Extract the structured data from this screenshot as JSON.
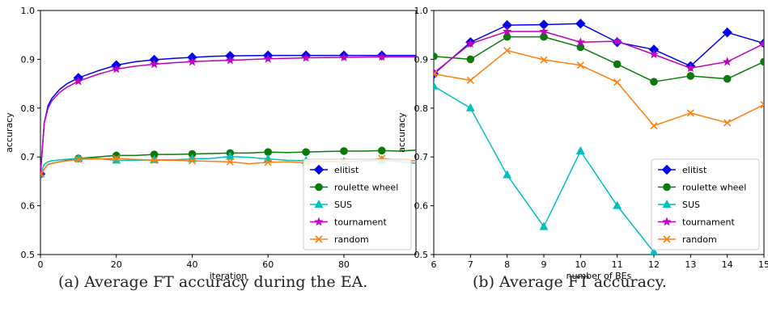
{
  "captions": {
    "a": "(a) Average FT accuracy during the EA.",
    "b": "(b) Average FT accuracy."
  },
  "colors": {
    "elitist": "#0000ee",
    "roulette wheel": "#0a7a0a",
    "SUS": "#00bfbf",
    "tournament": "#bf00bf",
    "random": "#ff7f0e"
  },
  "markers": {
    "elitist": "diamond",
    "roulette wheel": "circle",
    "SUS": "triangle",
    "tournament": "star",
    "random": "x"
  },
  "chart_data": [
    {
      "type": "line",
      "title": "",
      "xlabel": "iteration",
      "ylabel": "accuracy",
      "xlim": [
        0,
        99
      ],
      "ylim": [
        0.5,
        1.0
      ],
      "xticks": [
        0,
        20,
        40,
        60,
        80
      ],
      "yticks": [
        0.5,
        0.6,
        0.7,
        0.8,
        0.9,
        1.0
      ],
      "legend_position": "lower-right",
      "grid": false,
      "series": [
        {
          "name": "elitist",
          "x": [
            0,
            1,
            2,
            3,
            5,
            7,
            10,
            15,
            20,
            25,
            30,
            35,
            40,
            45,
            50,
            60,
            70,
            80,
            90,
            99
          ],
          "y": [
            0.665,
            0.77,
            0.805,
            0.82,
            0.838,
            0.85,
            0.862,
            0.876,
            0.888,
            0.895,
            0.899,
            0.902,
            0.904,
            0.906,
            0.907,
            0.908,
            0.908,
            0.908,
            0.908,
            0.908
          ],
          "marker_x": [
            0,
            10,
            20,
            30,
            40,
            50,
            60,
            70,
            80,
            90
          ]
        },
        {
          "name": "roulette wheel",
          "x": [
            0,
            2,
            5,
            10,
            15,
            20,
            25,
            30,
            35,
            40,
            45,
            50,
            55,
            60,
            65,
            70,
            75,
            80,
            85,
            90,
            95,
            99
          ],
          "y": [
            0.665,
            0.685,
            0.69,
            0.697,
            0.7,
            0.703,
            0.703,
            0.705,
            0.705,
            0.706,
            0.707,
            0.708,
            0.708,
            0.71,
            0.709,
            0.71,
            0.711,
            0.712,
            0.712,
            0.713,
            0.712,
            0.714
          ],
          "marker_x": [
            0,
            10,
            20,
            30,
            40,
            50,
            60,
            70,
            80,
            90
          ]
        },
        {
          "name": "SUS",
          "x": [
            0,
            1,
            2,
            3,
            5,
            10,
            15,
            20,
            25,
            30,
            35,
            40,
            45,
            50,
            55,
            60,
            65,
            70,
            75,
            80,
            85,
            90,
            95,
            99
          ],
          "y": [
            0.665,
            0.685,
            0.69,
            0.692,
            0.694,
            0.697,
            0.697,
            0.693,
            0.693,
            0.694,
            0.694,
            0.696,
            0.697,
            0.701,
            0.699,
            0.696,
            0.693,
            0.692,
            0.691,
            0.69,
            0.691,
            0.693,
            0.69,
            0.687
          ],
          "marker_x": [
            0,
            10,
            20,
            30,
            40,
            50,
            60,
            70,
            80,
            90
          ]
        },
        {
          "name": "tournament",
          "x": [
            0,
            1,
            2,
            3,
            5,
            7,
            10,
            15,
            20,
            25,
            30,
            35,
            40,
            45,
            50,
            60,
            70,
            80,
            90,
            99
          ],
          "y": [
            0.665,
            0.77,
            0.8,
            0.815,
            0.832,
            0.843,
            0.855,
            0.869,
            0.88,
            0.886,
            0.89,
            0.893,
            0.895,
            0.897,
            0.898,
            0.901,
            0.903,
            0.904,
            0.905,
            0.905
          ],
          "marker_x": [
            0,
            10,
            20,
            30,
            40,
            50,
            60,
            70,
            80,
            90
          ]
        },
        {
          "name": "random",
          "x": [
            0,
            2,
            5,
            10,
            15,
            20,
            25,
            30,
            35,
            40,
            45,
            50,
            55,
            60,
            65,
            70,
            75,
            80,
            85,
            90,
            95,
            99
          ],
          "y": [
            0.665,
            0.685,
            0.69,
            0.695,
            0.696,
            0.697,
            0.695,
            0.693,
            0.693,
            0.692,
            0.691,
            0.69,
            0.686,
            0.689,
            0.69,
            0.688,
            0.69,
            0.69,
            0.692,
            0.697,
            0.693,
            0.692
          ],
          "marker_x": [
            0,
            10,
            20,
            30,
            40,
            50,
            60,
            70,
            80,
            90
          ]
        }
      ]
    },
    {
      "type": "line",
      "title": "",
      "xlabel": "number of BEs",
      "ylabel": "accuracy",
      "xlim": [
        6,
        15
      ],
      "ylim": [
        0.5,
        1.0
      ],
      "xticks": [
        6,
        7,
        8,
        9,
        10,
        11,
        12,
        13,
        14,
        15
      ],
      "yticks": [
        0.5,
        0.6,
        0.7,
        0.8,
        0.9,
        1.0
      ],
      "legend_position": "lower-right",
      "grid": false,
      "series": [
        {
          "name": "elitist",
          "x": [
            6,
            7,
            8,
            9,
            10,
            11,
            12,
            13,
            14,
            15
          ],
          "y": [
            0.87,
            0.935,
            0.97,
            0.971,
            0.973,
            0.935,
            0.92,
            0.886,
            0.955,
            0.933
          ]
        },
        {
          "name": "roulette wheel",
          "x": [
            6,
            7,
            8,
            9,
            10,
            11,
            12,
            13,
            14,
            15
          ],
          "y": [
            0.906,
            0.9,
            0.946,
            0.946,
            0.925,
            0.89,
            0.854,
            0.866,
            0.86,
            0.895
          ]
        },
        {
          "name": "SUS",
          "x": [
            6,
            7,
            8,
            9,
            10,
            11,
            12
          ],
          "y": [
            0.845,
            0.8,
            0.663,
            0.557,
            0.712,
            0.6,
            0.505
          ]
        },
        {
          "name": "tournament",
          "x": [
            6,
            7,
            8,
            9,
            10,
            11,
            12,
            13,
            14,
            15
          ],
          "y": [
            0.872,
            0.932,
            0.957,
            0.957,
            0.935,
            0.937,
            0.91,
            0.882,
            0.895,
            0.932
          ]
        },
        {
          "name": "random",
          "x": [
            6,
            7,
            8,
            9,
            10,
            11,
            12,
            13,
            14,
            15
          ],
          "y": [
            0.87,
            0.857,
            0.918,
            0.899,
            0.888,
            0.853,
            0.764,
            0.79,
            0.77,
            0.807
          ]
        }
      ]
    }
  ]
}
